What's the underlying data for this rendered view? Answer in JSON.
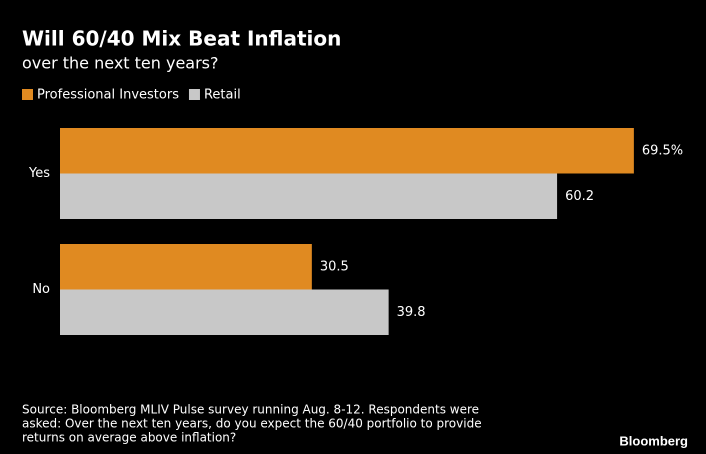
{
  "chart_data": {
    "type": "bar",
    "orientation": "horizontal",
    "title": "Will 60/40 Mix Beat Inflation",
    "subtitle": "over the next ten years?",
    "categories": [
      "Yes",
      "No"
    ],
    "series": [
      {
        "name": "Professional Investors",
        "color": "#e08a21",
        "values": [
          69.5,
          30.5
        ],
        "value_labels": [
          "69.5%",
          "30.5"
        ]
      },
      {
        "name": "Retail",
        "color": "#c8c8c8",
        "values": [
          60.2,
          39.8
        ]
      }
    ],
    "xlim": [
      0,
      70
    ],
    "source": [
      "Source: Bloomberg MLIV Pulse survey running Aug. 8-12. Respondents were",
      "asked: Over the next ten years, do you expect the 60/40 portfolio to provide",
      "returns on average above inflation?"
    ],
    "brand": "Bloomberg"
  }
}
